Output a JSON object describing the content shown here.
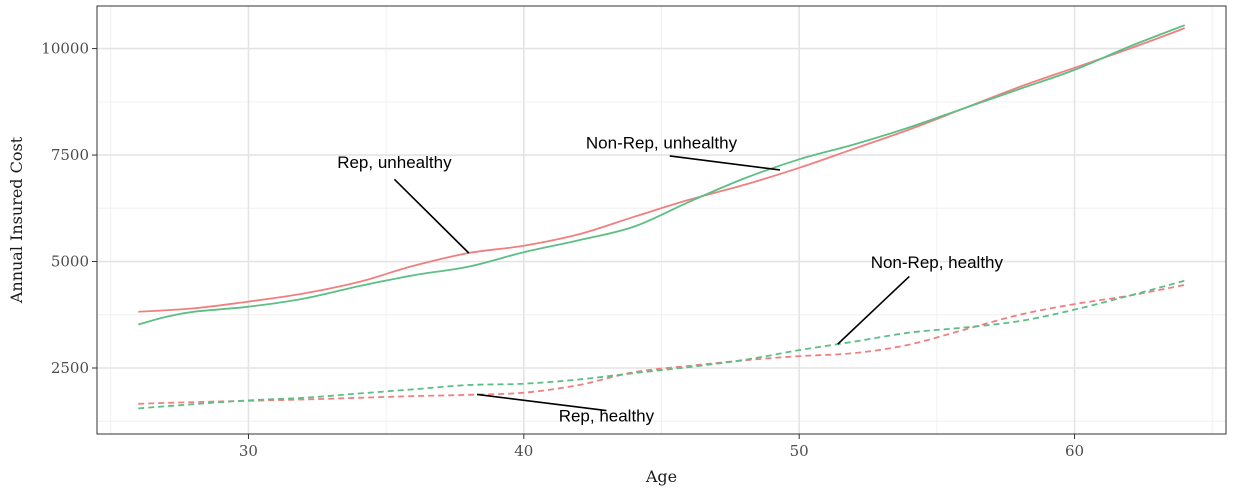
{
  "chart_data": {
    "type": "line",
    "title": "",
    "xlabel": "Age",
    "ylabel": "Annual Insured Cost",
    "xlim": [
      24.5,
      65.5
    ],
    "ylim": [
      950,
      11000
    ],
    "x_ticks": [
      30,
      40,
      50,
      60
    ],
    "x_tick_labels": [
      "30",
      "40",
      "50",
      "60"
    ],
    "y_ticks": [
      2500,
      5000,
      7500,
      10000
    ],
    "y_tick_labels": [
      "2500",
      "5000",
      "7500",
      "10000"
    ],
    "grid": true,
    "legend": "none",
    "colors": {
      "rep": "#F08080",
      "nonrep": "#5DBE86"
    },
    "series": [
      {
        "color": "#F08080",
        "dash": "solid",
        "x": [
          26,
          28,
          30,
          32,
          34,
          36,
          38,
          40,
          42,
          44,
          46,
          48,
          50,
          52,
          54,
          56,
          58,
          60,
          62,
          64
        ],
        "y": [
          3820,
          3900,
          4060,
          4250,
          4520,
          4900,
          5200,
          5370,
          5640,
          6050,
          6450,
          6800,
          7200,
          7650,
          8100,
          8600,
          9100,
          9550,
          10000,
          10480
        ]
      },
      {
        "color": "#5DBE86",
        "dash": "solid",
        "x": [
          26,
          27,
          28,
          30,
          32,
          34,
          36,
          38,
          40,
          42,
          44,
          46,
          48,
          50,
          52,
          54,
          56,
          58,
          60,
          62,
          64
        ],
        "y": [
          3520,
          3700,
          3820,
          3940,
          4130,
          4420,
          4680,
          4880,
          5220,
          5500,
          5820,
          6400,
          6950,
          7400,
          7750,
          8150,
          8600,
          9050,
          9500,
          10050,
          10550
        ]
      },
      {
        "color": "#F08080",
        "dash": "dashed",
        "x": [
          26,
          28,
          30,
          32,
          34,
          36,
          38,
          40,
          42,
          44,
          46,
          48,
          50,
          52,
          54,
          56,
          58,
          60,
          62,
          64
        ],
        "y": [
          1660,
          1700,
          1730,
          1760,
          1800,
          1840,
          1870,
          1920,
          2100,
          2400,
          2550,
          2680,
          2780,
          2850,
          3050,
          3400,
          3750,
          4000,
          4200,
          4450
        ]
      },
      {
        "color": "#5DBE86",
        "dash": "dashed",
        "x": [
          26,
          28,
          30,
          32,
          34,
          36,
          38,
          40,
          42,
          44,
          46,
          48,
          50,
          52,
          54,
          56,
          58,
          60,
          62,
          64
        ],
        "y": [
          1550,
          1650,
          1740,
          1800,
          1900,
          2000,
          2100,
          2130,
          2230,
          2380,
          2520,
          2690,
          2920,
          3120,
          3330,
          3450,
          3600,
          3870,
          4200,
          4550
        ]
      }
    ],
    "annotations": [
      {
        "text": "Rep, unhealthy",
        "label_x": 35.3,
        "label_y": 7200,
        "point_x": 38.0,
        "point_y": 5200,
        "from_x": 35.3,
        "from_y": 6930
      },
      {
        "text": "Non-Rep, unhealthy",
        "label_x": 45.0,
        "label_y": 7650,
        "point_x": 49.3,
        "point_y": 7150,
        "from_x": 45.3,
        "from_y": 7480
      },
      {
        "text": "Non-Rep, healthy",
        "label_x": 55.0,
        "label_y": 4850,
        "point_x": 51.4,
        "point_y": 3060,
        "from_x": 54.0,
        "from_y": 4650
      },
      {
        "text": "Rep, healthy",
        "label_x": 43.0,
        "label_y": 1240,
        "point_x": 38.3,
        "point_y": 1880,
        "from_x": 43.0,
        "from_y": 1500
      }
    ]
  }
}
